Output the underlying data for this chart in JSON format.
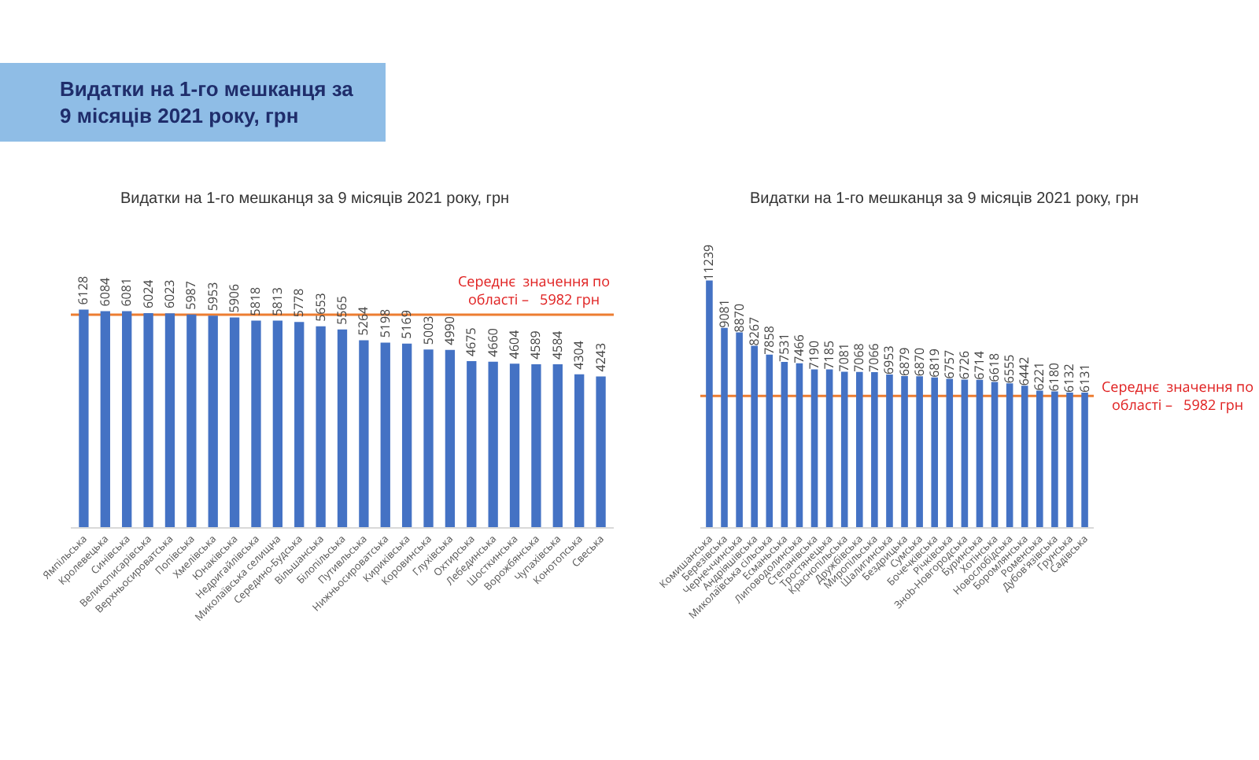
{
  "chart_data": [
    {
      "type": "other",
      "title": "Видатки на 1-го мешканця за 9 місяців 2021 року, грн"
    },
    {
      "type": "bar",
      "title": "Видатки на 1-го мешканця за 9 місяців 2021 року, грн",
      "categories": [
        "Ямпільська",
        "Кролевецька",
        "Синівська",
        "Великописарівська",
        "Верхньосироватська",
        "Попівська",
        "Хмелівська",
        "Юнаківська",
        "Недригайлівська",
        "Миколаївська селищна",
        "Середино-Будська",
        "Вільшанська",
        "Білопільська",
        "Путивльська",
        "Нижньосироватська",
        "Кириківська",
        "Коровинська",
        "Глухівська",
        "Охтирська",
        "Лебединська",
        "Шосткинська",
        "Ворожбянська",
        "Чупахівська",
        "Конотопська",
        "Свеська"
      ],
      "values": [
        6128,
        6084,
        6081,
        6024,
        6023,
        5987,
        5953,
        5906,
        5818,
        5813,
        5778,
        5653,
        5565,
        5264,
        5198,
        5169,
        5003,
        4990,
        4675,
        4660,
        4604,
        4589,
        4584,
        4304,
        4243
      ],
      "color": "#4472c4",
      "data_labels": true,
      "grid": false,
      "legend": false,
      "ref_lines": [
        {
          "axis": "y",
          "value": 5982,
          "label": "Середнє  значення по області –   5982 грн",
          "color": "#ed7d31"
        }
      ]
    },
    {
      "type": "bar",
      "title": "Видатки на 1-го мешканця за 9 місяців 2021 року, грн",
      "categories": [
        "Комишанська",
        "Березівська",
        "Чернеччинська",
        "Андріяшівська",
        "Миколаївська сільська",
        "Есманьська",
        "Липоводолинська",
        "Степанівська",
        "Тростянецька",
        "Краснопільська",
        "Дружбівська",
        "Миропільська",
        "Шалигинська",
        "Бездрицька",
        "Сумська",
        "Бочечківська",
        "Річківська",
        "Знob-Новгородська",
        "Буринська",
        "Хотінська",
        "Новослобідська",
        "Боромлянська",
        "Роменська",
        "Дубов'язівська",
        "Грунська",
        "Садівська"
      ],
      "values": [
        11239,
        9081,
        8870,
        8267,
        7858,
        7531,
        7466,
        7190,
        7185,
        7081,
        7068,
        7066,
        6953,
        6879,
        6870,
        6819,
        6757,
        6726,
        6714,
        6618,
        6555,
        6442,
        6221,
        6180,
        6132,
        6131
      ],
      "color": "#4472c4",
      "data_labels": true,
      "grid": false,
      "legend": false,
      "ref_lines": [
        {
          "axis": "y",
          "value": 5982,
          "label": "Середнє  значення по області –   5982 грн",
          "color": "#ed7d31"
        }
      ]
    }
  ]
}
